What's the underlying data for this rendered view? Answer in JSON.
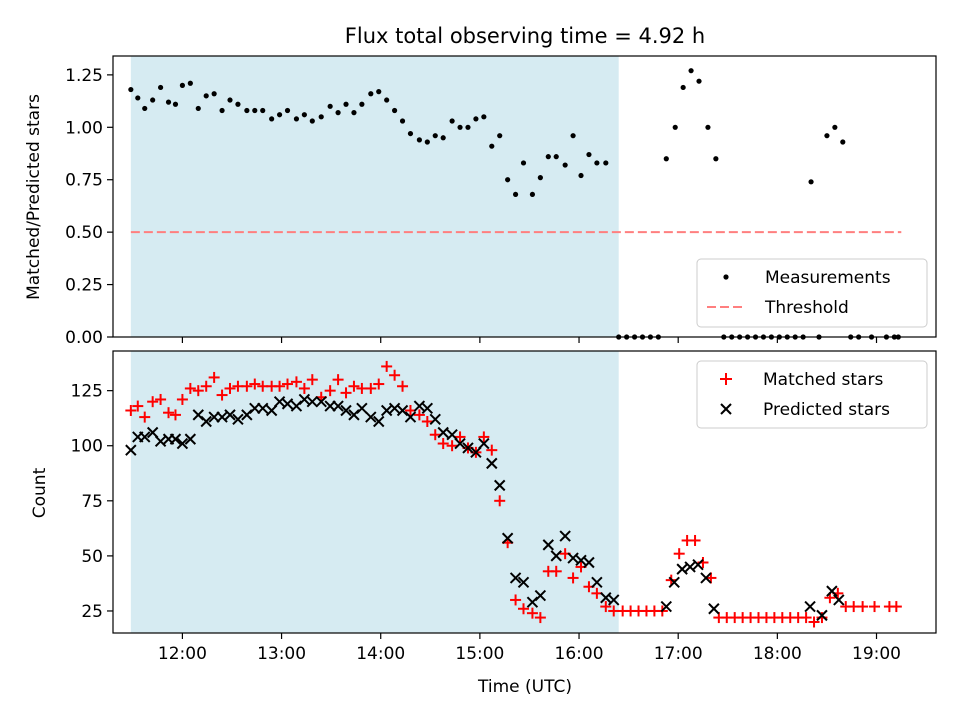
{
  "figure": {
    "title": "Flux total observing time = 4.92 h"
  },
  "colors": {
    "shade": "#add8e6",
    "matched": "#ff0000",
    "predicted": "#000000",
    "threshold": "#ff7f7f",
    "measure": "#000000"
  },
  "chart_data": [
    {
      "type": "scatter",
      "ylabel": "Matched/Predicted stars",
      "xlim": [
        11.3,
        19.6
      ],
      "ylim": [
        0,
        1.34
      ],
      "yticks": [
        0.0,
        0.25,
        0.5,
        0.75,
        1.0,
        1.25
      ],
      "ytick_labels": [
        "0.00",
        "0.25",
        "0.50",
        "0.75",
        "1.00",
        "1.25"
      ],
      "shaded_x_range": [
        11.48,
        16.4
      ],
      "threshold": {
        "y": 0.5,
        "x": [
          11.48,
          19.25
        ]
      },
      "legend": {
        "position": "lower-right",
        "entries": [
          "Measurements",
          "Threshold"
        ]
      },
      "series": [
        {
          "name": "Measurements",
          "points": [
            [
              11.48,
              1.18
            ],
            [
              11.55,
              1.14
            ],
            [
              11.62,
              1.09
            ],
            [
              11.7,
              1.13
            ],
            [
              11.78,
              1.19
            ],
            [
              11.86,
              1.12
            ],
            [
              11.93,
              1.11
            ],
            [
              12.0,
              1.2
            ],
            [
              12.08,
              1.21
            ],
            [
              12.16,
              1.09
            ],
            [
              12.24,
              1.15
            ],
            [
              12.32,
              1.16
            ],
            [
              12.4,
              1.08
            ],
            [
              12.48,
              1.13
            ],
            [
              12.56,
              1.11
            ],
            [
              12.65,
              1.08
            ],
            [
              12.73,
              1.08
            ],
            [
              12.81,
              1.08
            ],
            [
              12.9,
              1.04
            ],
            [
              12.98,
              1.06
            ],
            [
              13.06,
              1.08
            ],
            [
              13.15,
              1.04
            ],
            [
              13.23,
              1.06
            ],
            [
              13.31,
              1.03
            ],
            [
              13.4,
              1.05
            ],
            [
              13.49,
              1.1
            ],
            [
              13.57,
              1.07
            ],
            [
              13.65,
              1.11
            ],
            [
              13.73,
              1.07
            ],
            [
              13.81,
              1.11
            ],
            [
              13.9,
              1.16
            ],
            [
              13.98,
              1.17
            ],
            [
              14.06,
              1.13
            ],
            [
              14.14,
              1.08
            ],
            [
              14.22,
              1.03
            ],
            [
              14.3,
              0.97
            ],
            [
              14.39,
              0.94
            ],
            [
              14.47,
              0.93
            ],
            [
              14.55,
              0.96
            ],
            [
              14.63,
              0.95
            ],
            [
              14.72,
              1.03
            ],
            [
              14.8,
              1.0
            ],
            [
              14.88,
              1.0
            ],
            [
              14.96,
              1.04
            ],
            [
              15.04,
              1.05
            ],
            [
              15.12,
              0.91
            ],
            [
              15.2,
              0.96
            ],
            [
              15.28,
              0.75
            ],
            [
              15.36,
              0.68
            ],
            [
              15.44,
              0.83
            ],
            [
              15.53,
              0.68
            ],
            [
              15.61,
              0.76
            ],
            [
              15.69,
              0.86
            ],
            [
              15.77,
              0.86
            ],
            [
              15.86,
              0.82
            ],
            [
              15.94,
              0.96
            ],
            [
              16.02,
              0.77
            ],
            [
              16.1,
              0.87
            ],
            [
              16.18,
              0.83
            ],
            [
              16.27,
              0.83
            ],
            [
              16.4,
              0.0
            ],
            [
              16.48,
              0.0
            ],
            [
              16.56,
              0.0
            ],
            [
              16.64,
              0.0
            ],
            [
              16.72,
              0.0
            ],
            [
              16.8,
              0.0
            ],
            [
              16.88,
              0.85
            ],
            [
              16.97,
              1.0
            ],
            [
              17.05,
              1.19
            ],
            [
              17.13,
              1.27
            ],
            [
              17.21,
              1.22
            ],
            [
              17.3,
              1.0
            ],
            [
              17.38,
              0.85
            ],
            [
              17.46,
              0.0
            ],
            [
              17.54,
              0.0
            ],
            [
              17.62,
              0.0
            ],
            [
              17.7,
              0.0
            ],
            [
              17.78,
              0.0
            ],
            [
              17.86,
              0.0
            ],
            [
              17.94,
              0.0
            ],
            [
              18.02,
              0.0
            ],
            [
              18.1,
              0.0
            ],
            [
              18.18,
              0.0
            ],
            [
              18.26,
              0.0
            ],
            [
              18.34,
              0.74
            ],
            [
              18.42,
              0.0
            ],
            [
              18.5,
              0.96
            ],
            [
              18.58,
              1.0
            ],
            [
              18.66,
              0.93
            ],
            [
              18.74,
              0.0
            ],
            [
              18.82,
              0.0
            ],
            [
              18.95,
              0.0
            ],
            [
              19.1,
              0.0
            ],
            [
              19.18,
              0.0
            ],
            [
              19.22,
              0.0
            ]
          ]
        }
      ]
    },
    {
      "type": "scatter",
      "ylabel": "Count",
      "xlabel": "Time (UTC)",
      "xlim": [
        11.3,
        19.6
      ],
      "ylim": [
        15,
        143
      ],
      "yticks": [
        25,
        50,
        75,
        100,
        125
      ],
      "ytick_labels": [
        "25",
        "50",
        "75",
        "100",
        "125"
      ],
      "xticks": [
        12,
        13,
        14,
        15,
        16,
        17,
        18,
        19
      ],
      "xtick_labels": [
        "12:00",
        "13:00",
        "14:00",
        "15:00",
        "16:00",
        "17:00",
        "18:00",
        "19:00"
      ],
      "shaded_x_range": [
        11.48,
        16.4
      ],
      "legend": {
        "position": "top-right",
        "entries": [
          "Matched stars",
          "Predicted stars"
        ]
      },
      "series": [
        {
          "name": "Matched stars",
          "points": [
            [
              11.48,
              116
            ],
            [
              11.55,
              118
            ],
            [
              11.62,
              113
            ],
            [
              11.7,
              120
            ],
            [
              11.78,
              121
            ],
            [
              11.86,
              115
            ],
            [
              11.93,
              114
            ],
            [
              12.0,
              121
            ],
            [
              12.08,
              126
            ],
            [
              12.16,
              125
            ],
            [
              12.24,
              127
            ],
            [
              12.32,
              131
            ],
            [
              12.4,
              123
            ],
            [
              12.48,
              126
            ],
            [
              12.56,
              127
            ],
            [
              12.65,
              127
            ],
            [
              12.73,
              128
            ],
            [
              12.81,
              127
            ],
            [
              12.9,
              127
            ],
            [
              12.98,
              127
            ],
            [
              13.06,
              128
            ],
            [
              13.15,
              129
            ],
            [
              13.23,
              126
            ],
            [
              13.31,
              130
            ],
            [
              13.4,
              122
            ],
            [
              13.49,
              125
            ],
            [
              13.57,
              130
            ],
            [
              13.65,
              124
            ],
            [
              13.73,
              127
            ],
            [
              13.81,
              126
            ],
            [
              13.9,
              126
            ],
            [
              13.98,
              128
            ],
            [
              14.06,
              136
            ],
            [
              14.14,
              132
            ],
            [
              14.22,
              127
            ],
            [
              14.3,
              116
            ],
            [
              14.39,
              114
            ],
            [
              14.47,
              111
            ],
            [
              14.55,
              105
            ],
            [
              14.63,
              101
            ],
            [
              14.72,
              100
            ],
            [
              14.8,
              104
            ],
            [
              14.88,
              99
            ],
            [
              14.96,
              97
            ],
            [
              15.04,
              104
            ],
            [
              15.12,
              98
            ],
            [
              15.2,
              75
            ],
            [
              15.28,
              56
            ],
            [
              15.36,
              30
            ],
            [
              15.44,
              26
            ],
            [
              15.53,
              24
            ],
            [
              15.61,
              22
            ],
            [
              15.69,
              43
            ],
            [
              15.77,
              43
            ],
            [
              15.86,
              51
            ],
            [
              15.94,
              40
            ],
            [
              16.02,
              45
            ],
            [
              16.1,
              36
            ],
            [
              16.18,
              33
            ],
            [
              16.27,
              27
            ],
            [
              16.35,
              25
            ],
            [
              16.44,
              25
            ],
            [
              16.52,
              25
            ],
            [
              16.6,
              25
            ],
            [
              16.68,
              25
            ],
            [
              16.76,
              25
            ],
            [
              16.84,
              25
            ],
            [
              16.93,
              39
            ],
            [
              17.01,
              51
            ],
            [
              17.09,
              57
            ],
            [
              17.17,
              57
            ],
            [
              17.25,
              47
            ],
            [
              17.33,
              40
            ],
            [
              17.41,
              22
            ],
            [
              17.49,
              22
            ],
            [
              17.57,
              22
            ],
            [
              17.65,
              22
            ],
            [
              17.73,
              22
            ],
            [
              17.81,
              22
            ],
            [
              17.89,
              22
            ],
            [
              17.97,
              22
            ],
            [
              18.05,
              22
            ],
            [
              18.13,
              22
            ],
            [
              18.21,
              22
            ],
            [
              18.29,
              22
            ],
            [
              18.37,
              20
            ],
            [
              18.45,
              22
            ],
            [
              18.53,
              31
            ],
            [
              18.61,
              33
            ],
            [
              18.69,
              27
            ],
            [
              18.77,
              27
            ],
            [
              18.86,
              27
            ],
            [
              18.98,
              27
            ],
            [
              19.13,
              27
            ],
            [
              19.2,
              27
            ]
          ]
        },
        {
          "name": "Predicted stars",
          "points": [
            [
              11.48,
              98
            ],
            [
              11.55,
              104
            ],
            [
              11.62,
              104
            ],
            [
              11.7,
              106
            ],
            [
              11.78,
              102
            ],
            [
              11.86,
              103
            ],
            [
              11.93,
              103
            ],
            [
              12.0,
              101
            ],
            [
              12.08,
              103
            ],
            [
              12.16,
              114
            ],
            [
              12.24,
              111
            ],
            [
              12.32,
              113
            ],
            [
              12.4,
              113
            ],
            [
              12.48,
              114
            ],
            [
              12.56,
              112
            ],
            [
              12.65,
              114
            ],
            [
              12.73,
              117
            ],
            [
              12.81,
              117
            ],
            [
              12.9,
              116
            ],
            [
              12.98,
              120
            ],
            [
              13.06,
              119
            ],
            [
              13.15,
              118
            ],
            [
              13.23,
              121
            ],
            [
              13.31,
              120
            ],
            [
              13.4,
              120
            ],
            [
              13.49,
              118
            ],
            [
              13.57,
              118
            ],
            [
              13.65,
              116
            ],
            [
              13.73,
              114
            ],
            [
              13.81,
              117
            ],
            [
              13.9,
              113
            ],
            [
              13.98,
              111
            ],
            [
              14.06,
              116
            ],
            [
              14.14,
              117
            ],
            [
              14.22,
              116
            ],
            [
              14.3,
              113
            ],
            [
              14.39,
              118
            ],
            [
              14.47,
              117
            ],
            [
              14.55,
              112
            ],
            [
              14.63,
              106
            ],
            [
              14.72,
              105
            ],
            [
              14.8,
              101
            ],
            [
              14.88,
              99
            ],
            [
              14.96,
              97
            ],
            [
              15.04,
              101
            ],
            [
              15.12,
              92
            ],
            [
              15.2,
              82
            ],
            [
              15.28,
              58
            ],
            [
              15.36,
              40
            ],
            [
              15.44,
              38
            ],
            [
              15.53,
              29
            ],
            [
              15.61,
              32
            ],
            [
              15.69,
              55
            ],
            [
              15.77,
              50
            ],
            [
              15.86,
              59
            ],
            [
              15.94,
              49
            ],
            [
              16.02,
              48
            ],
            [
              16.1,
              47
            ],
            [
              16.18,
              38
            ],
            [
              16.27,
              31
            ],
            [
              16.35,
              30
            ],
            [
              16.88,
              27
            ],
            [
              16.96,
              38
            ],
            [
              17.04,
              44
            ],
            [
              17.12,
              45
            ],
            [
              17.2,
              46
            ],
            [
              17.28,
              40
            ],
            [
              17.36,
              26
            ],
            [
              18.33,
              27
            ],
            [
              18.45,
              23
            ],
            [
              18.55,
              34
            ],
            [
              18.62,
              30
            ]
          ]
        }
      ]
    }
  ]
}
